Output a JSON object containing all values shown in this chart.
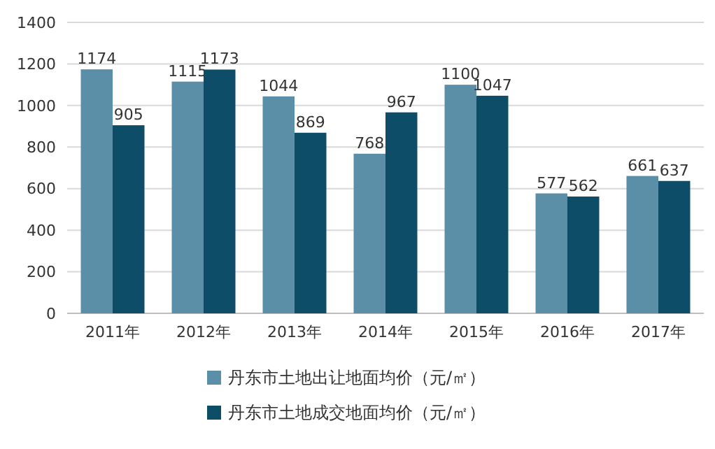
{
  "chart_data": {
    "type": "bar",
    "categories": [
      "2011年",
      "2012年",
      "2013年",
      "2014年",
      "2015年",
      "2016年",
      "2017年"
    ],
    "series": [
      {
        "name": "丹东市土地出让地面均价（元/㎡）",
        "color": "#5b8fa8",
        "values": [
          1174,
          1115,
          1044,
          768,
          1100,
          577,
          661
        ]
      },
      {
        "name": "丹东市土地成交地面均价（元/㎡）",
        "color": "#0e4d68",
        "values": [
          905,
          1173,
          869,
          967,
          1047,
          562,
          637
        ]
      }
    ],
    "ylim": [
      0,
      1400
    ],
    "yticks": [
      0,
      200,
      400,
      600,
      800,
      1000,
      1200,
      1400
    ],
    "grid": "y",
    "legend": "bottom",
    "data_labels": true
  }
}
